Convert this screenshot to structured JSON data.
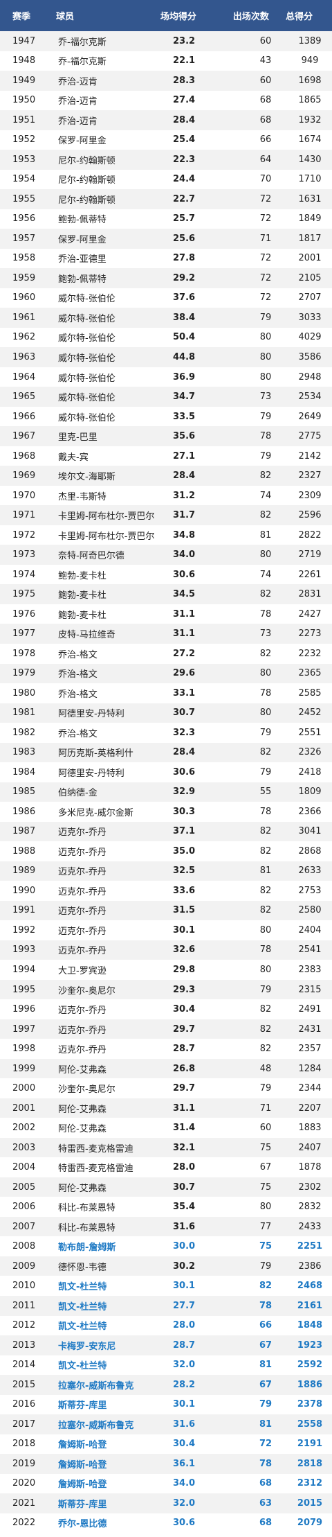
{
  "header": {
    "season": "赛季",
    "player": "球员",
    "ppg": "场均得分",
    "games": "出场次数",
    "total": "总得分"
  },
  "rows": [
    {
      "season": "1947",
      "player": "乔-福尔克斯",
      "ppg": "23.2",
      "games": "60",
      "total": "1389"
    },
    {
      "season": "1948",
      "player": "乔-福尔克斯",
      "ppg": "22.1",
      "games": "43",
      "total": "949"
    },
    {
      "season": "1949",
      "player": "乔治-迈肯",
      "ppg": "28.3",
      "games": "60",
      "total": "1698"
    },
    {
      "season": "1950",
      "player": "乔治-迈肯",
      "ppg": "27.4",
      "games": "68",
      "total": "1865"
    },
    {
      "season": "1951",
      "player": "乔治-迈肯",
      "ppg": "28.4",
      "games": "68",
      "total": "1932"
    },
    {
      "season": "1952",
      "player": "保罗-阿里金",
      "ppg": "25.4",
      "games": "66",
      "total": "1674"
    },
    {
      "season": "1953",
      "player": "尼尔-约翰斯顿",
      "ppg": "22.3",
      "games": "64",
      "total": "1430"
    },
    {
      "season": "1954",
      "player": "尼尔-约翰斯顿",
      "ppg": "24.4",
      "games": "70",
      "total": "1710"
    },
    {
      "season": "1955",
      "player": "尼尔-约翰斯顿",
      "ppg": "22.7",
      "games": "72",
      "total": "1631"
    },
    {
      "season": "1956",
      "player": "鲍勃-佩蒂特",
      "ppg": "25.7",
      "games": "72",
      "total": "1849"
    },
    {
      "season": "1957",
      "player": "保罗-阿里金",
      "ppg": "25.6",
      "games": "71",
      "total": "1817"
    },
    {
      "season": "1958",
      "player": "乔治-亚德里",
      "ppg": "27.8",
      "games": "72",
      "total": "2001"
    },
    {
      "season": "1959",
      "player": "鲍勃-佩蒂特",
      "ppg": "29.2",
      "games": "72",
      "total": "2105"
    },
    {
      "season": "1960",
      "player": "威尔特-张伯伦",
      "ppg": "37.6",
      "games": "72",
      "total": "2707"
    },
    {
      "season": "1961",
      "player": "威尔特-张伯伦",
      "ppg": "38.4",
      "games": "79",
      "total": "3033"
    },
    {
      "season": "1962",
      "player": "威尔特-张伯伦",
      "ppg": "50.4",
      "games": "80",
      "total": "4029"
    },
    {
      "season": "1963",
      "player": "威尔特-张伯伦",
      "ppg": "44.8",
      "games": "80",
      "total": "3586"
    },
    {
      "season": "1964",
      "player": "威尔特-张伯伦",
      "ppg": "36.9",
      "games": "80",
      "total": "2948"
    },
    {
      "season": "1965",
      "player": "威尔特-张伯伦",
      "ppg": "34.7",
      "games": "73",
      "total": "2534"
    },
    {
      "season": "1966",
      "player": "威尔特-张伯伦",
      "ppg": "33.5",
      "games": "79",
      "total": "2649"
    },
    {
      "season": "1967",
      "player": "里克-巴里",
      "ppg": "35.6",
      "games": "78",
      "total": "2775"
    },
    {
      "season": "1968",
      "player": "戴夫-宾",
      "ppg": "27.1",
      "games": "79",
      "total": "2142"
    },
    {
      "season": "1969",
      "player": "埃尔文-海耶斯",
      "ppg": "28.4",
      "games": "82",
      "total": "2327"
    },
    {
      "season": "1970",
      "player": "杰里-韦斯特",
      "ppg": "31.2",
      "games": "74",
      "total": "2309"
    },
    {
      "season": "1971",
      "player": "卡里姆-阿布杜尔-贾巴尔",
      "ppg": "31.7",
      "games": "82",
      "total": "2596"
    },
    {
      "season": "1972",
      "player": "卡里姆-阿布杜尔-贾巴尔",
      "ppg": "34.8",
      "games": "81",
      "total": "2822"
    },
    {
      "season": "1973",
      "player": "奈特-阿奇巴尔德",
      "ppg": "34.0",
      "games": "80",
      "total": "2719"
    },
    {
      "season": "1974",
      "player": "鲍勃-麦卡杜",
      "ppg": "30.6",
      "games": "74",
      "total": "2261"
    },
    {
      "season": "1975",
      "player": "鲍勃-麦卡杜",
      "ppg": "34.5",
      "games": "82",
      "total": "2831"
    },
    {
      "season": "1976",
      "player": "鲍勃-麦卡杜",
      "ppg": "31.1",
      "games": "78",
      "total": "2427"
    },
    {
      "season": "1977",
      "player": "皮特-马拉维奇",
      "ppg": "31.1",
      "games": "73",
      "total": "2273"
    },
    {
      "season": "1978",
      "player": "乔治-格文",
      "ppg": "27.2",
      "games": "82",
      "total": "2232"
    },
    {
      "season": "1979",
      "player": "乔治-格文",
      "ppg": "29.6",
      "games": "80",
      "total": "2365"
    },
    {
      "season": "1980",
      "player": "乔治-格文",
      "ppg": "33.1",
      "games": "78",
      "total": "2585"
    },
    {
      "season": "1981",
      "player": "阿德里安-丹特利",
      "ppg": "30.7",
      "games": "80",
      "total": "2452"
    },
    {
      "season": "1982",
      "player": "乔治-格文",
      "ppg": "32.3",
      "games": "79",
      "total": "2551"
    },
    {
      "season": "1983",
      "player": "阿历克斯-英格利什",
      "ppg": "28.4",
      "games": "82",
      "total": "2326"
    },
    {
      "season": "1984",
      "player": "阿德里安-丹特利",
      "ppg": "30.6",
      "games": "79",
      "total": "2418"
    },
    {
      "season": "1985",
      "player": "伯纳德-金",
      "ppg": "32.9",
      "games": "55",
      "total": "1809"
    },
    {
      "season": "1986",
      "player": "多米尼克-威尔金斯",
      "ppg": "30.3",
      "games": "78",
      "total": "2366"
    },
    {
      "season": "1987",
      "player": "迈克尔-乔丹",
      "ppg": "37.1",
      "games": "82",
      "total": "3041"
    },
    {
      "season": "1988",
      "player": "迈克尔-乔丹",
      "ppg": "35.0",
      "games": "82",
      "total": "2868"
    },
    {
      "season": "1989",
      "player": "迈克尔-乔丹",
      "ppg": "32.5",
      "games": "81",
      "total": "2633"
    },
    {
      "season": "1990",
      "player": "迈克尔-乔丹",
      "ppg": "33.6",
      "games": "82",
      "total": "2753"
    },
    {
      "season": "1991",
      "player": "迈克尔-乔丹",
      "ppg": "31.5",
      "games": "82",
      "total": "2580"
    },
    {
      "season": "1992",
      "player": "迈克尔-乔丹",
      "ppg": "30.1",
      "games": "80",
      "total": "2404"
    },
    {
      "season": "1993",
      "player": "迈克尔-乔丹",
      "ppg": "32.6",
      "games": "78",
      "total": "2541"
    },
    {
      "season": "1994",
      "player": "大卫-罗宾逊",
      "ppg": "29.8",
      "games": "80",
      "total": "2383"
    },
    {
      "season": "1995",
      "player": "沙奎尔-奥尼尔",
      "ppg": "29.3",
      "games": "79",
      "total": "2315"
    },
    {
      "season": "1996",
      "player": "迈克尔-乔丹",
      "ppg": "30.4",
      "games": "82",
      "total": "2491"
    },
    {
      "season": "1997",
      "player": "迈克尔-乔丹",
      "ppg": "29.7",
      "games": "82",
      "total": "2431"
    },
    {
      "season": "1998",
      "player": "迈克尔-乔丹",
      "ppg": "28.7",
      "games": "82",
      "total": "2357"
    },
    {
      "season": "1999",
      "player": "阿伦-艾弗森",
      "ppg": "26.8",
      "games": "48",
      "total": "1284"
    },
    {
      "season": "2000",
      "player": "沙奎尔-奥尼尔",
      "ppg": "29.7",
      "games": "79",
      "total": "2344"
    },
    {
      "season": "2001",
      "player": "阿伦-艾弗森",
      "ppg": "31.1",
      "games": "71",
      "total": "2207"
    },
    {
      "season": "2002",
      "player": "阿伦-艾弗森",
      "ppg": "31.4",
      "games": "60",
      "total": "1883"
    },
    {
      "season": "2003",
      "player": "特雷西-麦克格雷迪",
      "ppg": "32.1",
      "games": "75",
      "total": "2407"
    },
    {
      "season": "2004",
      "player": "特雷西-麦克格雷迪",
      "ppg": "28.0",
      "games": "67",
      "total": "1878"
    },
    {
      "season": "2005",
      "player": "阿伦-艾弗森",
      "ppg": "30.7",
      "games": "75",
      "total": "2302"
    },
    {
      "season": "2006",
      "player": "科比-布莱恩特",
      "ppg": "35.4",
      "games": "80",
      "total": "2832"
    },
    {
      "season": "2007",
      "player": "科比-布莱恩特",
      "ppg": "31.6",
      "games": "77",
      "total": "2433"
    },
    {
      "season": "2008",
      "player": "勒布朗-詹姆斯",
      "ppg": "30.0",
      "games": "75",
      "total": "2251",
      "hl": true
    },
    {
      "season": "2009",
      "player": "德怀恩-韦德",
      "ppg": "30.2",
      "games": "79",
      "total": "2386"
    },
    {
      "season": "2010",
      "player": "凯文-杜兰特",
      "ppg": "30.1",
      "games": "82",
      "total": "2468",
      "hl": true
    },
    {
      "season": "2011",
      "player": "凯文-杜兰特",
      "ppg": "27.7",
      "games": "78",
      "total": "2161",
      "hl": true
    },
    {
      "season": "2012",
      "player": "凯文-杜兰特",
      "ppg": "28.0",
      "games": "66",
      "total": "1848",
      "hl": true
    },
    {
      "season": "2013",
      "player": "卡梅罗-安东尼",
      "ppg": "28.7",
      "games": "67",
      "total": "1923",
      "hl": true
    },
    {
      "season": "2014",
      "player": "凯文-杜兰特",
      "ppg": "32.0",
      "games": "81",
      "total": "2592",
      "hl": true
    },
    {
      "season": "2015",
      "player": "拉塞尔-威斯布鲁克",
      "ppg": "28.2",
      "games": "67",
      "total": "1886",
      "hl": true
    },
    {
      "season": "2016",
      "player": "斯蒂芬-库里",
      "ppg": "30.1",
      "games": "79",
      "total": "2378",
      "hl": true
    },
    {
      "season": "2017",
      "player": "拉塞尔-威斯布鲁克",
      "ppg": "31.6",
      "games": "81",
      "total": "2558",
      "hl": true
    },
    {
      "season": "2018",
      "player": "詹姆斯-哈登",
      "ppg": "30.4",
      "games": "72",
      "total": "2191",
      "hl": true
    },
    {
      "season": "2019",
      "player": "詹姆斯-哈登",
      "ppg": "36.1",
      "games": "78",
      "total": "2818",
      "hl": true
    },
    {
      "season": "2020",
      "player": "詹姆斯-哈登",
      "ppg": "34.0",
      "games": "68",
      "total": "2312",
      "hl": true
    },
    {
      "season": "2021",
      "player": "斯蒂芬-库里",
      "ppg": "32.0",
      "games": "63",
      "total": "2015",
      "hl": true
    },
    {
      "season": "2022",
      "player": "乔尔-恩比德",
      "ppg": "30.6",
      "games": "68",
      "total": "2079",
      "hl": true
    }
  ]
}
